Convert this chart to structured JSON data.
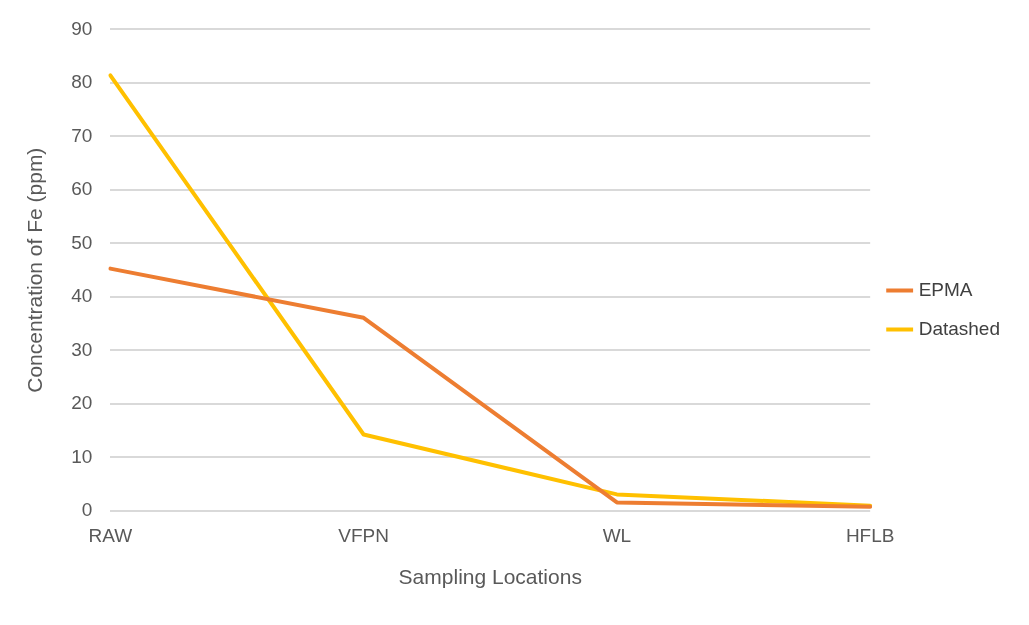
{
  "chart_data": {
    "type": "line",
    "xlabel": "Sampling Locations",
    "ylabel": "Concentration of Fe (ppm)",
    "categories": [
      "RAW",
      "VFPN",
      "WL",
      "HFLB"
    ],
    "series": [
      {
        "name": "EPMA",
        "color": "#ed7d31",
        "values": [
          45.3,
          36.1,
          1.6,
          0.8
        ]
      },
      {
        "name": "Datashed",
        "color": "#ffc000",
        "values": [
          81.4,
          14.3,
          3.1,
          1.0
        ]
      }
    ],
    "ylim": [
      0,
      90
    ],
    "yticks": [
      0,
      10,
      20,
      30,
      40,
      50,
      60,
      70,
      80,
      90
    ],
    "grid": "y",
    "legend": "right",
    "marker": "none",
    "line_style": "solid"
  }
}
